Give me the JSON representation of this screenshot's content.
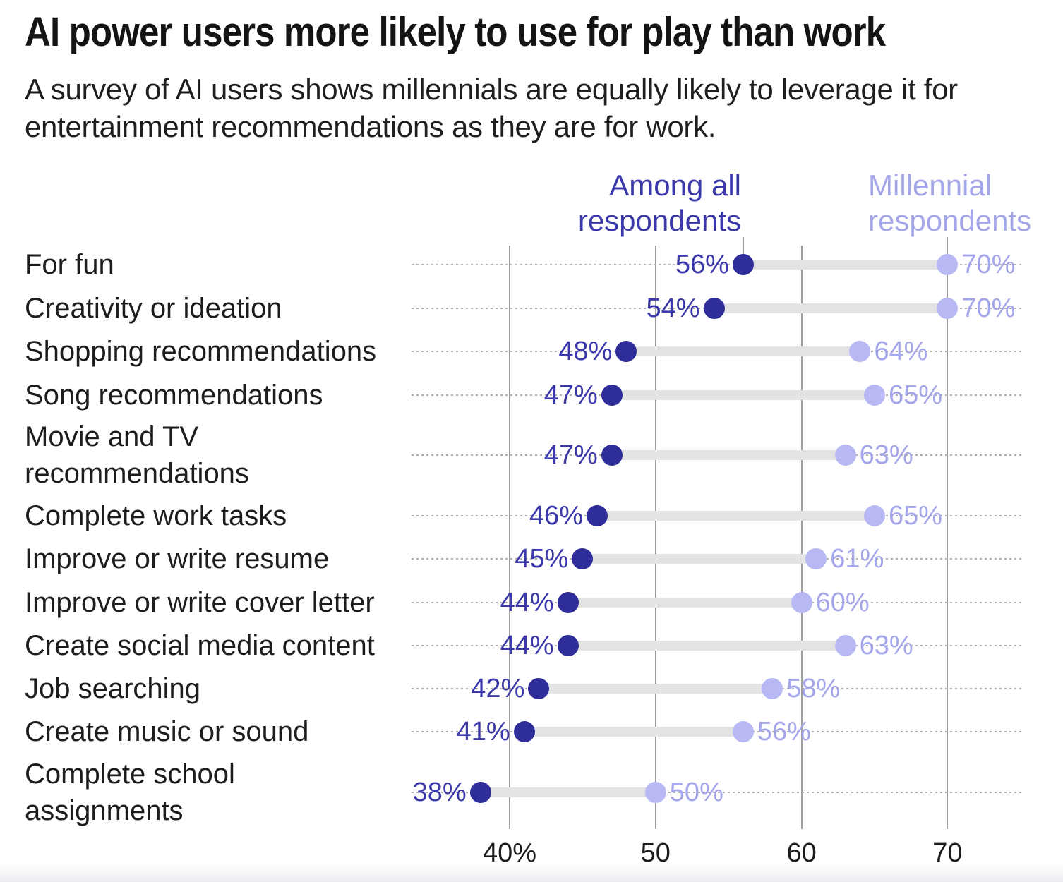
{
  "header": {
    "title": "AI power users more likely to use for play than work",
    "subtitle": "A survey of AI users shows millennials are equally likely to leverage it for entertainment recommendations as they are for work."
  },
  "legend": {
    "all_label": "Among all\nrespondents",
    "millennial_label": "Millennial\nrespondents"
  },
  "chart_data": {
    "type": "scatter",
    "variant": "dumbbell",
    "title": "AI power users more likely to use for play than work",
    "legend_position": "top",
    "grid": "vertical",
    "series": [
      {
        "name": "Among all respondents",
        "dot_color": "#2e2d99",
        "label_color": "#3b39aa"
      },
      {
        "name": "Millennial respondents",
        "dot_color": "#b8b9f4",
        "label_color": "#a4a6ea"
      }
    ],
    "x_axis": {
      "min": 33,
      "max": 75.2,
      "unit": "percent",
      "ticks": [
        {
          "value": 40,
          "label": "40%"
        },
        {
          "value": 50,
          "label": "50"
        },
        {
          "value": 60,
          "label": "60"
        },
        {
          "value": 70,
          "label": "70"
        }
      ]
    },
    "rows": [
      {
        "label": "For fun",
        "lines": [
          "For fun"
        ],
        "all": 56,
        "all_label": "56%",
        "millennial": 70,
        "millennial_label": "70%"
      },
      {
        "label": "Creativity or ideation",
        "lines": [
          "Creativity or ideation"
        ],
        "all": 54,
        "all_label": "54%",
        "millennial": 70,
        "millennial_label": "70%"
      },
      {
        "label": "Shopping recommendations",
        "lines": [
          "Shopping recommendations"
        ],
        "all": 48,
        "all_label": "48%",
        "millennial": 64,
        "millennial_label": "64%"
      },
      {
        "label": "Song recommendations",
        "lines": [
          "Song recommendations"
        ],
        "all": 47,
        "all_label": "47%",
        "millennial": 65,
        "millennial_label": "65%"
      },
      {
        "label": "Movie and TV recommendations",
        "lines": [
          "Movie and TV",
          "recommendations"
        ],
        "all": 47,
        "all_label": "47%",
        "millennial": 63,
        "millennial_label": "63%"
      },
      {
        "label": "Complete work tasks",
        "lines": [
          "Complete work tasks"
        ],
        "all": 46,
        "all_label": "46%",
        "millennial": 65,
        "millennial_label": "65%"
      },
      {
        "label": "Improve or write resume",
        "lines": [
          "Improve or write resume"
        ],
        "all": 45,
        "all_label": "45%",
        "millennial": 61,
        "millennial_label": "61%"
      },
      {
        "label": "Improve or write cover letter",
        "lines": [
          "Improve or write cover letter"
        ],
        "all": 44,
        "all_label": "44%",
        "millennial": 60,
        "millennial_label": "60%"
      },
      {
        "label": "Create social media content",
        "lines": [
          "Create social media content"
        ],
        "all": 44,
        "all_label": "44%",
        "millennial": 63,
        "millennial_label": "63%"
      },
      {
        "label": "Job searching",
        "lines": [
          "Job searching"
        ],
        "all": 42,
        "all_label": "42%",
        "millennial": 58,
        "millennial_label": "58%"
      },
      {
        "label": "Create music or sound",
        "lines": [
          "Create music or sound"
        ],
        "all": 41,
        "all_label": "41%",
        "millennial": 56,
        "millennial_label": "56%"
      },
      {
        "label": "Complete school assignments",
        "lines": [
          "Complete school",
          "assignments"
        ],
        "all": 38,
        "all_label": "38%",
        "millennial": 50,
        "millennial_label": "50%"
      }
    ]
  },
  "colors": {
    "dark_dot": "#2e2d99",
    "dark_text": "#3b39aa",
    "light_dot": "#b8b9f4",
    "light_text": "#a4a6ea",
    "connector_bar": "#e3e3e4",
    "gridline": "#9f9f9f",
    "leader_dots": "#aeaeae",
    "legend_stub": "#9f9f9f",
    "category_text": "#1d1d1d",
    "tick_text": "#1c1c1c"
  }
}
